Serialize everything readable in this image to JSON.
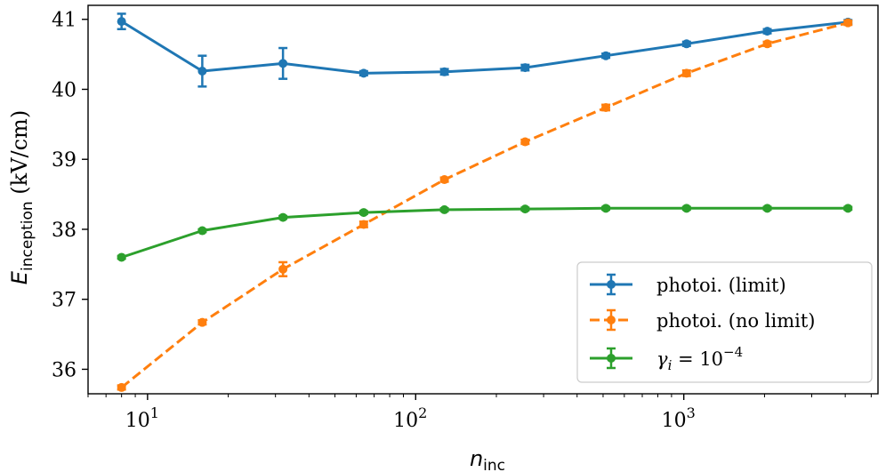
{
  "chart_data": {
    "type": "line",
    "title": "",
    "xlabel": "n_inc",
    "xlabel_main": "n",
    "xlabel_sub": "inc",
    "ylabel": "E_inception (kV/cm)",
    "ylabel_main": "E",
    "ylabel_sub": "inception",
    "ylabel_unit": "(kV/cm)",
    "xscale": "log",
    "xlim": [
      6,
      5300
    ],
    "ylim": [
      35.65,
      41.2
    ],
    "yticks": [
      36,
      37,
      38,
      39,
      40,
      41
    ],
    "ytick_labels": [
      "36",
      "37",
      "38",
      "39",
      "40",
      "41"
    ],
    "xticks": [
      10,
      100,
      1000
    ],
    "xtick_labels": [
      {
        "base": "10",
        "exp": "1"
      },
      {
        "base": "10",
        "exp": "2"
      },
      {
        "base": "10",
        "exp": "3"
      }
    ],
    "grid": false,
    "legend_position": "lower-right",
    "x": [
      8,
      16,
      32,
      64,
      128,
      256,
      512,
      1024,
      2048,
      4096
    ],
    "series": [
      {
        "name": "photoi. (limit)",
        "color": "#1f77b4",
        "linestyle": "solid",
        "values": [
          40.97,
          40.26,
          40.37,
          40.23,
          40.25,
          40.31,
          40.48,
          40.65,
          40.83,
          40.96
        ],
        "errors": [
          0.11,
          0.22,
          0.22,
          0.03,
          0.04,
          0.04,
          0.03,
          0.03,
          0.03,
          0.03
        ]
      },
      {
        "name": "photoi. (no limit)",
        "color": "#ff7f0e",
        "linestyle": "dashed",
        "values": [
          35.74,
          36.67,
          37.43,
          38.07,
          38.71,
          39.25,
          39.74,
          40.23,
          40.65,
          40.95
        ],
        "errors": [
          0.03,
          0.03,
          0.1,
          0.04,
          0.03,
          0.03,
          0.04,
          0.04,
          0.03,
          0.03
        ]
      },
      {
        "name": "γ_i = 10^-4",
        "legend_main": "γ",
        "legend_sub": "i",
        "legend_eq": " = 10",
        "legend_exp": "−4",
        "color": "#2ca02c",
        "linestyle": "solid",
        "values": [
          37.6,
          37.98,
          38.17,
          38.24,
          38.28,
          38.29,
          38.3,
          38.3,
          38.3,
          38.3
        ],
        "errors": [
          0.02,
          0.02,
          0.02,
          0.02,
          0.02,
          0.02,
          0.02,
          0.02,
          0.02,
          0.02
        ]
      }
    ]
  }
}
